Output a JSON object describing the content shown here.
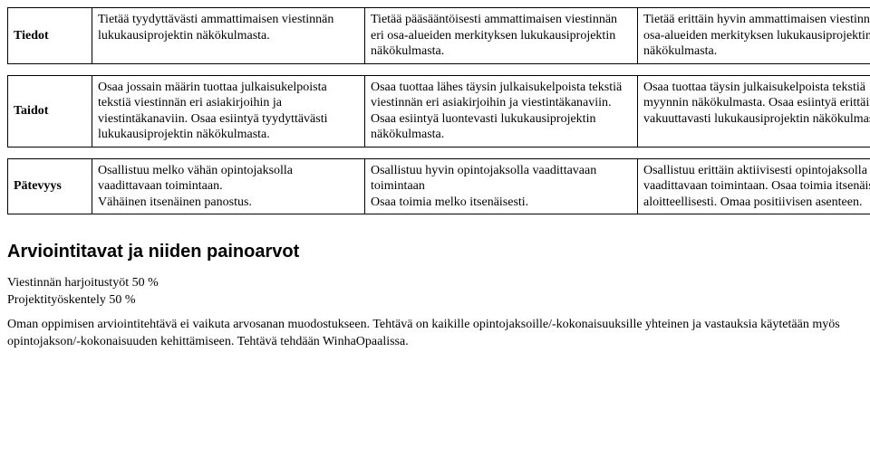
{
  "table": {
    "column_widths": {
      "header_col": 80,
      "content_col": 288
    },
    "rows": [
      {
        "label": "Tiedot",
        "c1": "Tietää tyydyttävästi ammattimaisen viestinnän lukukausiprojektin näkökulmasta.",
        "c2": "Tietää pääsääntöisesti ammattimaisen viestinnän eri osa-alueiden merkityksen lukukausiprojektin näkökulmasta.",
        "c3": "Tietää erittäin hyvin ammattimaisen viestinnän eri osa-alueiden merkityksen lukukausiprojektin näkökulmasta."
      },
      {
        "label": "Taidot",
        "c1": "Osaa jossain määrin tuottaa julkaisukelpoista tekstiä viestinnän eri asiakirjoihin ja viestintäkanaviin. Osaa esiintyä tyydyttävästi lukukausiprojektin näkökulmasta.",
        "c2": "Osaa tuottaa lähes täysin julkaisukelpoista tekstiä viestinnän eri asiakirjoihin ja viestintäkanaviin. Osaa esiintyä luontevasti lukukausiprojektin näkökulmasta.",
        "c3": "Osaa tuottaa täysin julkaisukelpoista tekstiä myynnin näkökulmasta. Osaa esiintyä erittäin vakuuttavasti lukukausiprojektin näkökulmasta."
      },
      {
        "label": "Pätevyys",
        "c1": "Osallistuu melko vähän opintojaksolla vaadittavaan toimintaan.\nVähäinen itsenäinen panostus.",
        "c2": "Osallistuu hyvin opintojaksolla vaadittavaan toimintaan\nOsaa toimia melko itsenäisesti.",
        "c3": "Osallistuu erittäin aktiivisesti opintojaksolla vaadittavaan toimintaan. Osaa toimia itsenäisesti ja aloitteellisesti. Omaa positiivisen asenteen."
      }
    ]
  },
  "section_heading": "Arviointitavat ja niiden painoarvot",
  "weights": {
    "line1": "Viestinnän harjoitustyöt 50 %",
    "line2": "Projektityöskentely 50 %"
  },
  "note": "Oman oppimisen arviointitehtävä ei vaikuta arvosanan muodostukseen. Tehtävä on kaikille opintojaksoille/-kokonaisuuksille yhteinen ja vastauksia käytetään myös opintojakson/-kokonaisuuden kehittämiseen. Tehtävä tehdään WinhaOpaalissa.",
  "styling": {
    "font_body": "Times New Roman",
    "font_heading": "Arial",
    "body_fontsize": 14,
    "heading_fontsize": 20,
    "border_color": "#000000",
    "background_color": "#ffffff",
    "text_color": "#000000"
  }
}
